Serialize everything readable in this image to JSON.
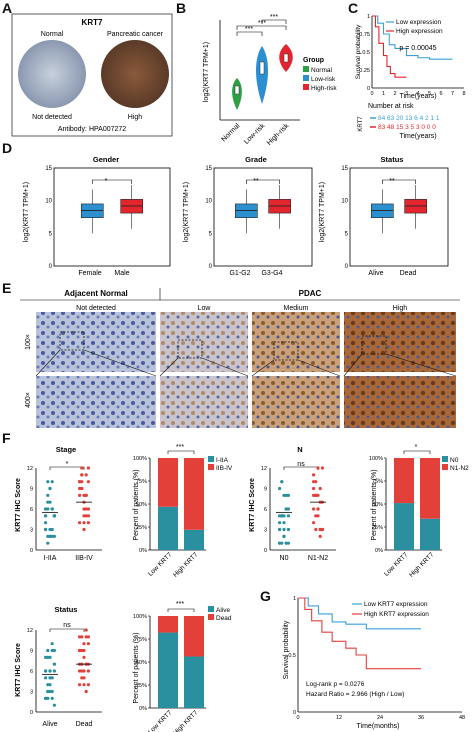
{
  "panels": {
    "A": "A",
    "B": "B",
    "C": "C",
    "D": "D",
    "E": "E",
    "F": "F",
    "G": "G"
  },
  "panelA": {
    "title": "KRT7",
    "normal": "Normal",
    "cancer": "Pancreatic cancer",
    "left_status": "Not detected",
    "right_status": "High",
    "antibody": "Antibody: HPA007272"
  },
  "panelB": {
    "ylabel": "log2(KRT7 TPM+1)",
    "legend_title": "Group",
    "legend": [
      "Normal",
      "Low-risk",
      "High-risk"
    ],
    "sig": [
      "***",
      "***",
      "***"
    ],
    "colors": [
      "#2ea043",
      "#2b8fd0",
      "#e3262e"
    ]
  },
  "panelC": {
    "legend": [
      "Low expression",
      "High expression"
    ],
    "pvalue": "p = 0.00045",
    "ylabel": "Survival probability",
    "xlabel": "Time(years)",
    "risk_title": "Number at risk",
    "risk_ylabel": "KRT7",
    "risk_low": "84 63 20 13 6  4  2  1  1",
    "risk_high": "83 48 15  3  5  3  0  0  0",
    "colors": [
      "#3aa0d8",
      "#e3262e"
    ]
  },
  "panelD": {
    "ylabel": "log2(KRT7 TPM+1)",
    "titles": [
      "Gender",
      "Grade",
      "Status"
    ],
    "xlabels": [
      [
        "Female",
        "Male"
      ],
      [
        "G1-G2",
        "G3-G4"
      ],
      [
        "Alive",
        "Dead"
      ]
    ],
    "sig": [
      "*",
      "**",
      "**"
    ]
  },
  "panelE": {
    "adjacent": "Adjacent Normal",
    "pdac": "PDAC",
    "cols": [
      "Not detected",
      "Low",
      "Medium",
      "High"
    ],
    "rows": [
      "100×",
      "400×"
    ]
  },
  "panelF": {
    "ylabel": "KRT7 IHC Score",
    "pct_ylabel": "Percent of patients (%)",
    "stage": {
      "title": "Stage",
      "x": [
        "I-IIA",
        "IIB-IV"
      ],
      "sig": "*"
    },
    "stage_bar": {
      "x": [
        "Low KRT7",
        "High KRT7"
      ],
      "legend": [
        "I-IIA",
        "IIB-IV"
      ],
      "sig": "***"
    },
    "n": {
      "title": "N",
      "x": [
        "N0",
        "N1-N2"
      ],
      "sig": "ns"
    },
    "n_bar": {
      "x": [
        "Low KRT7",
        "High KRT7"
      ],
      "legend": [
        "N0",
        "N1-N2"
      ],
      "sig": "*"
    },
    "status": {
      "title": "Status",
      "x": [
        "Alive",
        "Dead"
      ],
      "sig": "ns"
    },
    "status_bar": {
      "x": [
        "Low KRT7",
        "High KRT7"
      ],
      "legend": [
        "Alive",
        "Dead"
      ],
      "sig": "***"
    },
    "colors": [
      "#2a8f9e",
      "#e3403a"
    ]
  },
  "panelG": {
    "legend": [
      "Low KRT7 expression",
      "High KRT7 expression"
    ],
    "ylabel": "Survival probability",
    "xlabel": "Time(months)",
    "logrank": "Log-rank p = 0.0276",
    "hazard": "Hazard Ratio = 2.966 (High / Low)",
    "colors": [
      "#3aa0d8",
      "#e3403a"
    ]
  },
  "chart_data": [
    {
      "type": "bar",
      "panel": "F-stage",
      "categories": [
        "Low KRT7",
        "High KRT7"
      ],
      "series": [
        {
          "name": "I-IIA",
          "values": [
            47,
            22
          ]
        },
        {
          "name": "IIB-IV",
          "values": [
            53,
            78
          ]
        }
      ],
      "ylim": [
        0,
        100
      ],
      "ylabel": "Percent of patients (%)"
    },
    {
      "type": "bar",
      "panel": "F-N",
      "categories": [
        "Low KRT7",
        "High KRT7"
      ],
      "series": [
        {
          "name": "N0",
          "values": [
            51,
            34
          ]
        },
        {
          "name": "N1-N2",
          "values": [
            49,
            66
          ]
        }
      ],
      "ylim": [
        0,
        100
      ],
      "ylabel": "Percent of patients (%)"
    },
    {
      "type": "bar",
      "panel": "F-status",
      "categories": [
        "Low KRT7",
        "High KRT7"
      ],
      "series": [
        {
          "name": "Alive",
          "values": [
            82,
            56
          ]
        },
        {
          "name": "Dead",
          "values": [
            18,
            44
          ]
        }
      ],
      "ylim": [
        0,
        100
      ],
      "ylabel": "Percent of patients (%)"
    },
    {
      "type": "line",
      "panel": "G",
      "xlabel": "Time(months)",
      "ylabel": "Survival probability",
      "xlim": [
        0,
        48
      ],
      "ylim": [
        0,
        1
      ],
      "x_ticks": [
        0,
        12,
        24,
        36,
        48
      ],
      "y_ticks": [
        0,
        0.5,
        1
      ],
      "series": [
        {
          "name": "Low KRT7 expression",
          "x": [
            0,
            3,
            6,
            10,
            14,
            20,
            28,
            36
          ],
          "y": [
            1,
            0.93,
            0.86,
            0.79,
            0.77,
            0.73,
            0.73,
            0.73
          ]
        },
        {
          "name": "High KRT7 expression",
          "x": [
            0,
            2,
            4,
            7,
            10,
            14,
            17,
            20,
            26,
            36
          ],
          "y": [
            1,
            0.9,
            0.8,
            0.7,
            0.62,
            0.56,
            0.5,
            0.38,
            0.38,
            0.38
          ]
        }
      ]
    },
    {
      "type": "line",
      "panel": "C",
      "xlabel": "Time(years)",
      "ylabel": "Survival probability",
      "xlim": [
        0,
        8
      ],
      "ylim": [
        0,
        1
      ],
      "x_ticks": [
        0,
        1,
        2,
        3,
        4,
        5,
        6,
        7,
        8
      ],
      "y_ticks": [
        0,
        0.25,
        0.5,
        0.75,
        1
      ],
      "series": [
        {
          "name": "Low expression",
          "x": [
            0,
            0.5,
            1,
            1.5,
            2,
            3,
            4,
            5,
            6,
            7
          ],
          "y": [
            1,
            0.9,
            0.75,
            0.6,
            0.55,
            0.45,
            0.42,
            0.4,
            0.4,
            0.4
          ]
        },
        {
          "name": "High expression",
          "x": [
            0,
            0.3,
            0.6,
            1,
            1.3,
            1.6,
            2,
            3
          ],
          "y": [
            1,
            0.85,
            0.62,
            0.45,
            0.3,
            0.2,
            0.15,
            0.15
          ]
        }
      ]
    }
  ]
}
